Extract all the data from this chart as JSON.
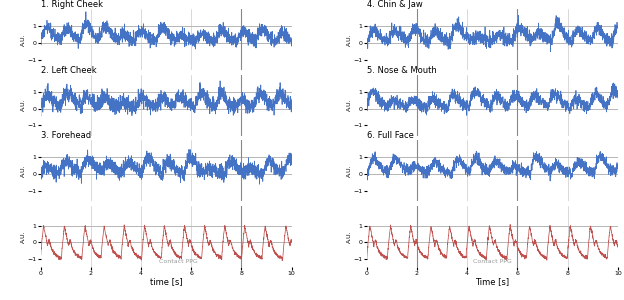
{
  "blue_color": "#4472C4",
  "red_color": "#C0504D",
  "grey_color": "#888888",
  "bg_color": "#FFFFFF",
  "left_titles": [
    "1. Right Cheek",
    "2. Left Cheek",
    "3. Forehead",
    ""
  ],
  "right_titles": [
    "4. Chin & Jaw",
    "5. Nose & Mouth",
    "6. Full Face",
    ""
  ],
  "left_xlabel": "time [s]",
  "right_xlabel": "Time [s]",
  "ylabel": "A.U.",
  "contact_ppg_label": "Contact PPG",
  "left_vline": 8.0,
  "right_vlines": [
    2.0,
    6.0
  ],
  "left_grid_vlines": [
    2.0,
    4.0,
    6.0
  ],
  "right_grid_vlines": [
    2.0,
    4.0,
    6.0,
    8.0
  ],
  "xlim": [
    0,
    10
  ],
  "ylim_signal": [
    -1.6,
    2.0
  ],
  "ylim_ppg": [
    -1.5,
    2.2
  ],
  "yticks_signal": [
    -1,
    0,
    1
  ],
  "yticks_ppg": [
    -1,
    0,
    1
  ],
  "fs": 200,
  "duration": 10,
  "hr_bpm": 75
}
